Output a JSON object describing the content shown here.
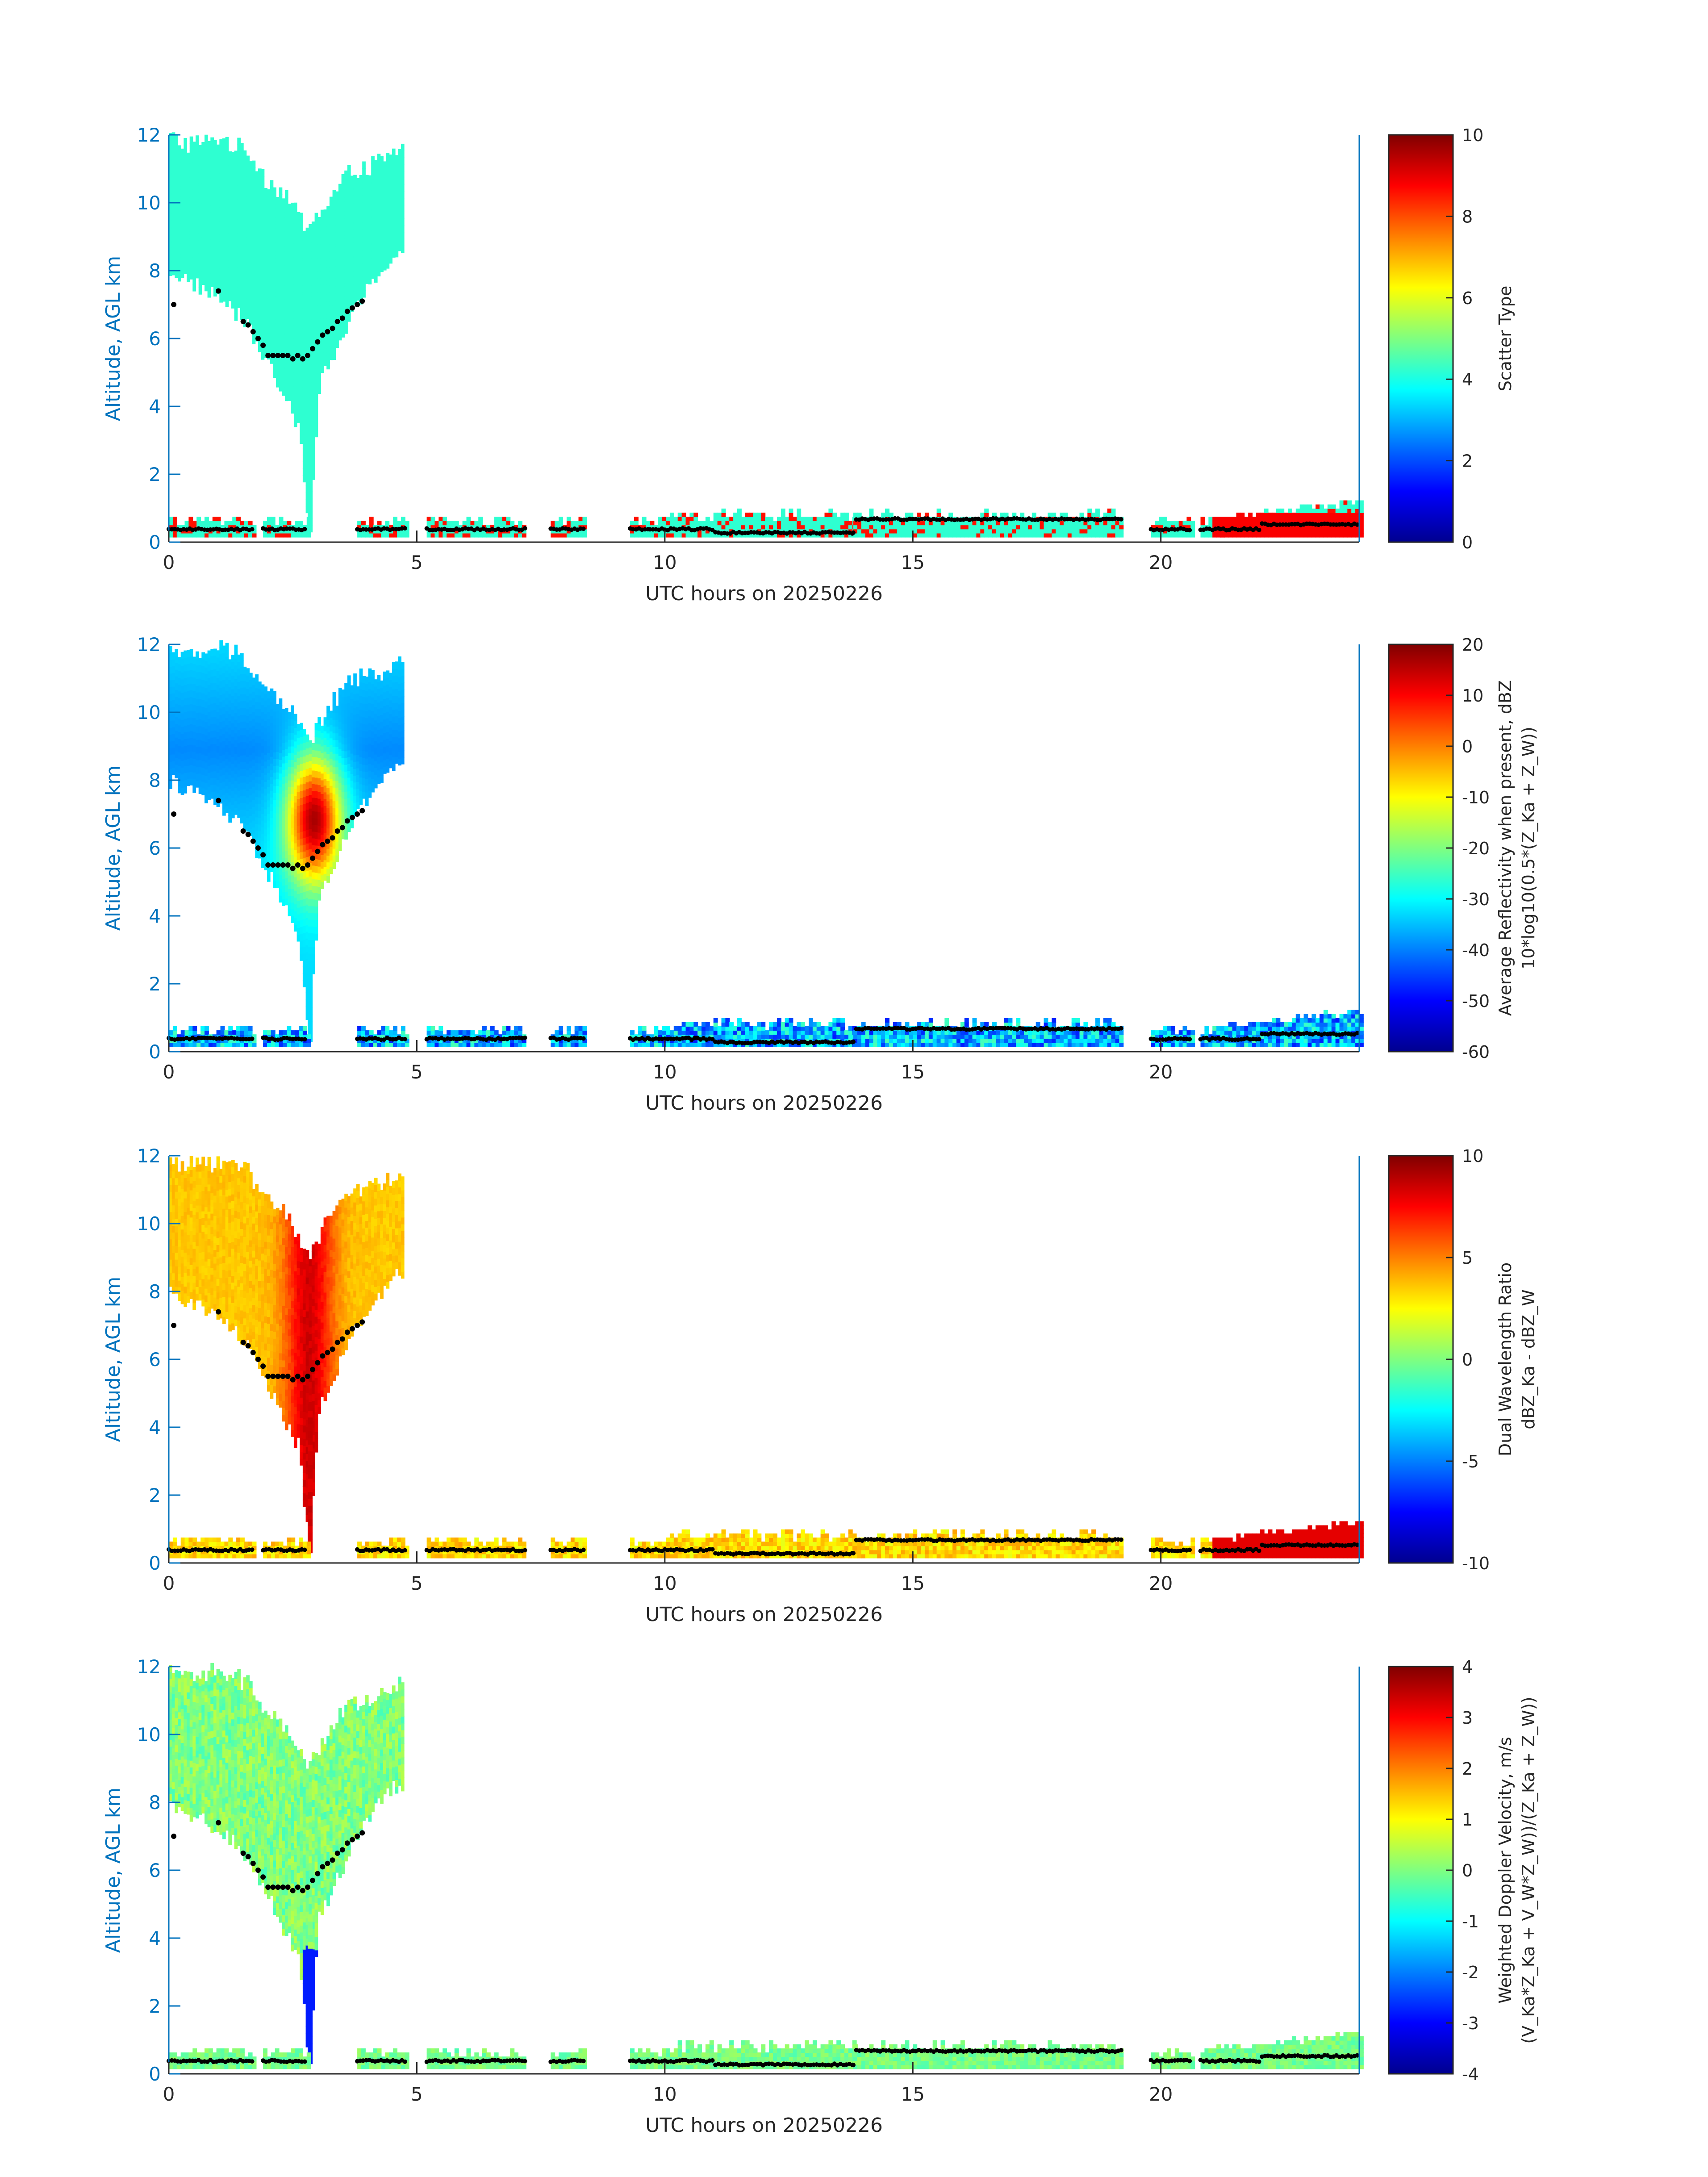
{
  "chart_data": [
    {
      "type": "heatmap",
      "title": "",
      "xlabel": "UTC hours on 20250226",
      "ylabel": "Altitude, AGL km",
      "xlim": [
        0,
        24
      ],
      "ylim": [
        0,
        12
      ],
      "xticks": [
        "0",
        "5",
        "10",
        "15",
        "20"
      ],
      "yticks": [
        "0",
        "2",
        "4",
        "6",
        "8",
        "10",
        "12"
      ],
      "colorbar": {
        "label_lines": [
          "Scatter Type"
        ],
        "clim": [
          0,
          10
        ],
        "ticks": [
          "0",
          "2",
          "4",
          "6",
          "8",
          "10"
        ]
      },
      "field": "scatter",
      "colormap": "jet"
    },
    {
      "type": "heatmap",
      "title": "",
      "xlabel": "UTC hours on 20250226",
      "ylabel": "Altitude, AGL km",
      "xlim": [
        0,
        24
      ],
      "ylim": [
        0,
        12
      ],
      "xticks": [
        "0",
        "5",
        "10",
        "15",
        "20"
      ],
      "yticks": [
        "0",
        "2",
        "4",
        "6",
        "8",
        "10",
        "12"
      ],
      "colorbar": {
        "label_lines": [
          "Average Reflectivity when present, dBZ",
          "10*log10(0.5*(Z_Ka + Z_W))"
        ],
        "clim": [
          -60,
          20
        ],
        "ticks": [
          "-60",
          "-50",
          "-40",
          "-30",
          "-20",
          "-10",
          "0",
          "10",
          "20"
        ]
      },
      "field": "reflectivity",
      "colormap": "jet"
    },
    {
      "type": "heatmap",
      "title": "",
      "xlabel": "UTC hours on 20250226",
      "ylabel": "Altitude, AGL km",
      "xlim": [
        0,
        24
      ],
      "ylim": [
        0,
        12
      ],
      "xticks": [
        "0",
        "5",
        "10",
        "15",
        "20"
      ],
      "yticks": [
        "0",
        "2",
        "4",
        "6",
        "8",
        "10",
        "12"
      ],
      "colorbar": {
        "label_lines": [
          "Dual Wavelength Ratio",
          "dBZ_Ka - dBZ_W"
        ],
        "clim": [
          -10,
          10
        ],
        "ticks": [
          "-10",
          "-5",
          "0",
          "5",
          "10"
        ]
      },
      "field": "dwr",
      "colormap": "jet"
    },
    {
      "type": "heatmap",
      "title": "",
      "xlabel": "UTC hours on 20250226",
      "ylabel": "Altitude, AGL km",
      "xlim": [
        0,
        24
      ],
      "ylim": [
        0,
        12
      ],
      "xticks": [
        "0",
        "5",
        "10",
        "15",
        "20"
      ],
      "yticks": [
        "0",
        "2",
        "4",
        "6",
        "8",
        "10",
        "12"
      ],
      "colorbar": {
        "label_lines": [
          "Weighted Doppler Velocity, m/s",
          "(V_Ka*Z_Ka + V_W*Z_W))/(Z_Ka + Z_W))"
        ],
        "clim": [
          -4,
          4
        ],
        "ticks": [
          "-4",
          "-3",
          "-2",
          "-1",
          "0",
          "1",
          "2",
          "3",
          "4"
        ]
      },
      "field": "velocity",
      "colormap": "jet"
    }
  ],
  "shared_echo": {
    "high_cloud": {
      "hours": [
        0.0,
        0.5,
        1.0,
        1.5,
        2.0,
        2.3,
        2.6,
        2.8,
        3.0,
        3.3,
        3.6,
        4.0,
        4.4,
        4.7
      ],
      "top_km": [
        11.8,
        11.6,
        11.8,
        11.5,
        10.5,
        10.2,
        9.5,
        9.0,
        9.6,
        10.2,
        10.8,
        11.0,
        11.2,
        11.5
      ],
      "base_km": [
        8.0,
        7.6,
        7.2,
        6.5,
        5.2,
        4.2,
        3.4,
        0.4,
        4.6,
        5.5,
        6.5,
        7.5,
        8.3,
        8.6
      ]
    },
    "low_segments_hours": [
      [
        0.0,
        1.7
      ],
      [
        1.9,
        2.8
      ],
      [
        3.8,
        4.8
      ],
      [
        5.2,
        7.2
      ],
      [
        7.7,
        8.4
      ],
      [
        9.3,
        9.7
      ],
      [
        9.7,
        13.8
      ],
      [
        13.8,
        19.2
      ],
      [
        19.8,
        20.6
      ],
      [
        20.8,
        21.2
      ],
      [
        21.2,
        24.0
      ]
    ],
    "cloud_top_points": {
      "hours": [
        0.1,
        1.0,
        1.5,
        1.6,
        1.7,
        1.8,
        1.9,
        2.0,
        2.1,
        2.2,
        2.3,
        2.4,
        2.5,
        2.6,
        2.7,
        2.8,
        2.9,
        3.0,
        3.1,
        3.2,
        3.3,
        3.4,
        3.5,
        3.6,
        3.7,
        3.8,
        3.9
      ],
      "altitude_km": [
        7.0,
        7.4,
        6.5,
        6.4,
        6.2,
        6.0,
        5.8,
        5.5,
        5.5,
        5.5,
        5.5,
        5.5,
        5.4,
        5.5,
        5.4,
        5.5,
        5.7,
        5.9,
        6.1,
        6.2,
        6.3,
        6.5,
        6.6,
        6.8,
        6.9,
        7.0,
        7.1
      ]
    }
  }
}
